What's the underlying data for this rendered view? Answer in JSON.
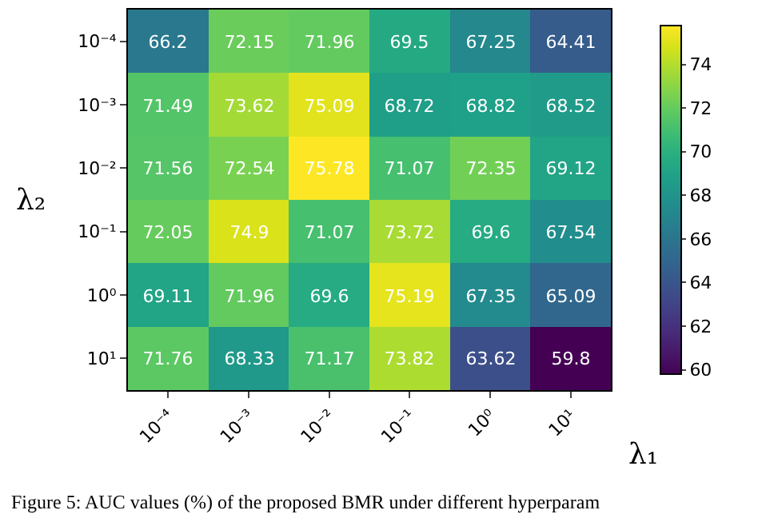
{
  "chart_data": {
    "type": "heatmap",
    "xlabel": "λ₁",
    "ylabel": "λ₂",
    "categories": [
      "10⁻⁴",
      "10⁻³",
      "10⁻²",
      "10⁻¹",
      "10⁰",
      "10¹"
    ],
    "y_categories": [
      "10⁻⁴",
      "10⁻³",
      "10⁻²",
      "10⁻¹",
      "10⁰",
      "10¹"
    ],
    "cells": [
      [
        66.2,
        72.15,
        71.96,
        69.5,
        67.25,
        64.41
      ],
      [
        71.49,
        73.62,
        75.09,
        68.72,
        68.82,
        68.52
      ],
      [
        71.56,
        72.54,
        75.78,
        71.07,
        72.35,
        69.12
      ],
      [
        72.05,
        74.9,
        71.07,
        73.72,
        69.6,
        67.54
      ],
      [
        69.11,
        71.96,
        69.6,
        75.19,
        67.35,
        65.09
      ],
      [
        71.76,
        68.33,
        71.17,
        73.82,
        63.62,
        59.8
      ]
    ],
    "clim": [
      59.8,
      75.78
    ],
    "cticks": [
      60,
      62,
      64,
      66,
      68,
      70,
      72,
      74
    ],
    "data_labels": true,
    "annotations": [
      "Figure 5: AUC values (%) of the proposed BMR under different hyperparam"
    ]
  }
}
